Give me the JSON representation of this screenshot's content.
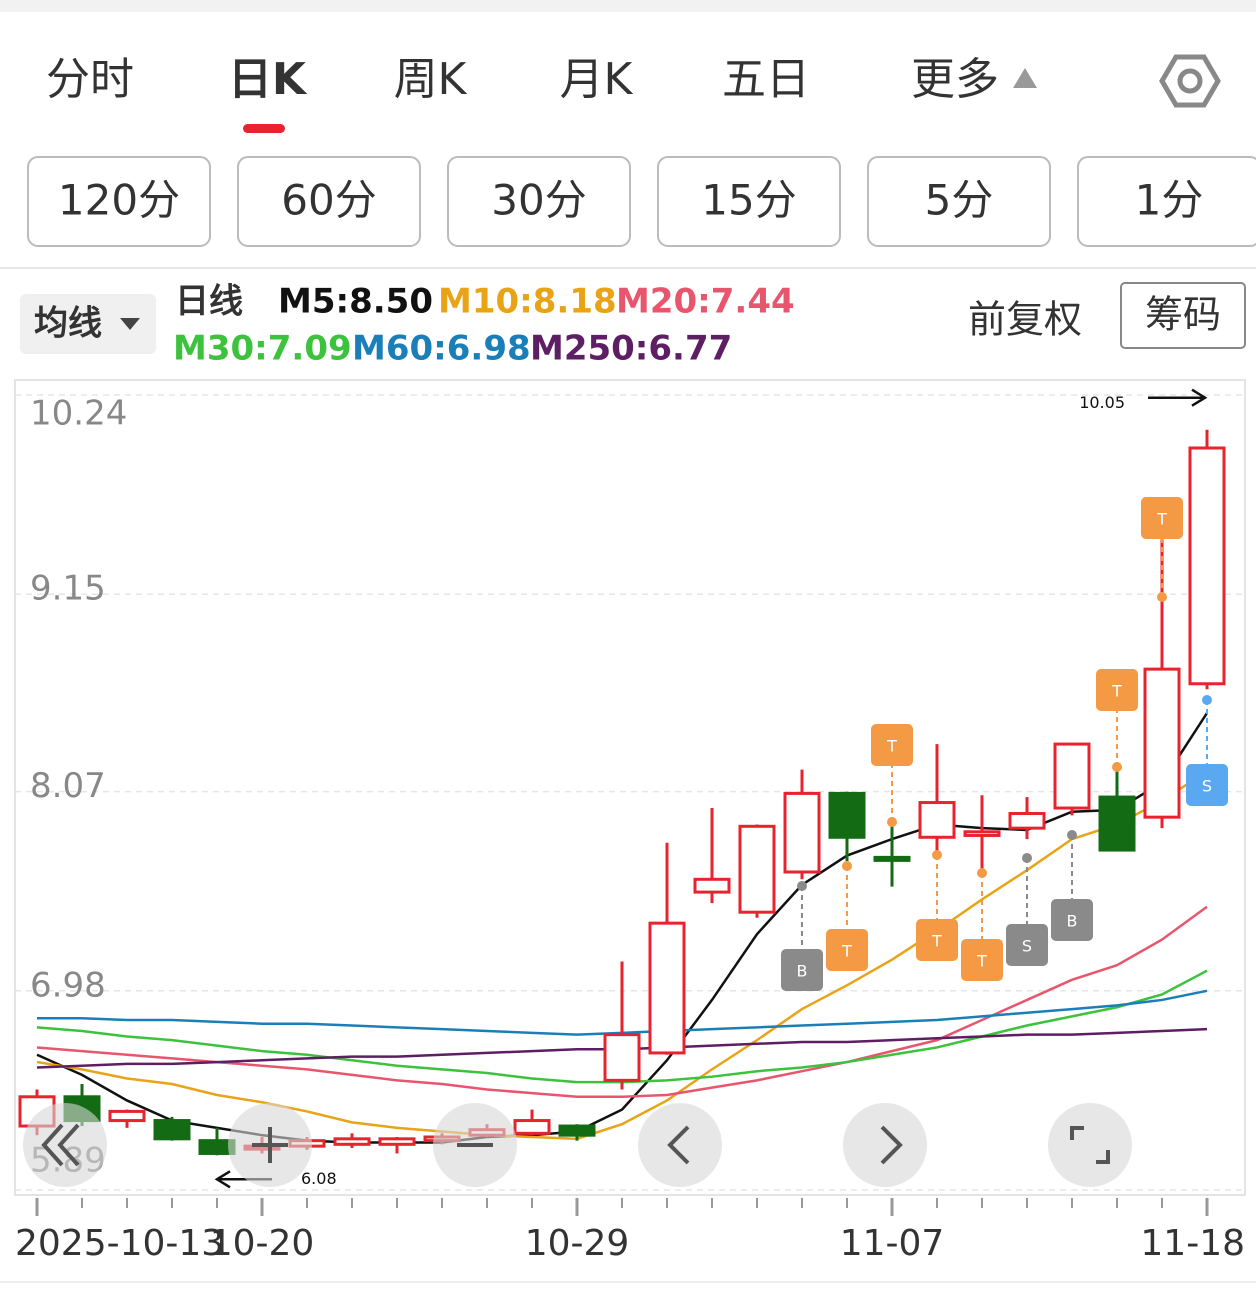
{
  "tabs": [
    "分时",
    "日K",
    "周K",
    "月K",
    "五日",
    "更多"
  ],
  "periods": [
    "120分",
    "60分",
    "30分",
    "15分",
    "5分",
    "1分"
  ],
  "ma_menu": "均线",
  "legend_title": "日线",
  "adjust": "前复权",
  "chips": "筹码",
  "chart_data": {
    "type": "candlestick",
    "categories": [
      "2025-10-13",
      null,
      null,
      null,
      null,
      "10-20",
      null,
      null,
      null,
      null,
      null,
      null,
      "10-29",
      null,
      null,
      null,
      null,
      null,
      null,
      "11-07",
      null,
      null,
      null,
      null,
      null,
      null,
      "11-18"
    ],
    "open": [
      6.24,
      6.4,
      6.27,
      6.27,
      6.16,
      6.12,
      6.13,
      6.14,
      6.14,
      6.16,
      6.19,
      6.2,
      6.24,
      6.49,
      6.64,
      7.52,
      7.41,
      7.63,
      8.06,
      7.71,
      7.82,
      7.83,
      7.87,
      7.98,
      8.04,
      7.93,
      8.66
    ],
    "high": [
      6.44,
      6.47,
      6.33,
      6.29,
      6.23,
      6.18,
      6.18,
      6.2,
      6.18,
      6.2,
      6.25,
      6.33,
      6.25,
      7.14,
      7.79,
      7.98,
      7.89,
      8.19,
      8.07,
      7.92,
      8.33,
      8.05,
      8.04,
      8.33,
      8.2,
      9.45,
      10.05
    ],
    "low": [
      6.19,
      6.24,
      6.23,
      6.16,
      6.08,
      6.09,
      6.11,
      6.12,
      6.09,
      6.14,
      6.18,
      6.19,
      6.16,
      6.44,
      6.63,
      7.46,
      7.38,
      7.59,
      7.69,
      7.55,
      7.72,
      7.63,
      7.81,
      7.94,
      7.75,
      7.87,
      8.63
    ],
    "close": [
      6.4,
      6.27,
      6.32,
      6.17,
      6.09,
      6.13,
      6.16,
      6.17,
      6.17,
      6.18,
      6.22,
      6.27,
      6.19,
      6.74,
      7.35,
      7.59,
      7.88,
      8.06,
      7.82,
      7.7,
      8.01,
      7.85,
      7.95,
      8.33,
      7.75,
      8.74,
      9.95
    ],
    "up_color": "#e8232e",
    "down_color": "#136b13",
    "ylim": [
      5.89,
      10.24
    ],
    "yticks": [
      10.24,
      9.15,
      8.07,
      6.98,
      5.89
    ],
    "grid": true,
    "series": [
      {
        "name": "M5:8.50",
        "color": "#111111",
        "values": [
          6.63,
          6.52,
          6.38,
          6.27,
          6.23,
          6.19,
          6.16,
          6.15,
          6.15,
          6.15,
          6.18,
          6.19,
          6.21,
          6.33,
          6.6,
          6.93,
          7.29,
          7.56,
          7.72,
          7.81,
          7.89,
          7.87,
          7.86,
          7.96,
          7.97,
          8.12,
          8.5
        ]
      },
      {
        "name": "M10:8.18",
        "color": "#e8a317",
        "values": [
          6.59,
          6.55,
          6.5,
          6.47,
          6.41,
          6.37,
          6.32,
          6.26,
          6.23,
          6.21,
          6.19,
          6.18,
          6.17,
          6.25,
          6.38,
          6.55,
          6.71,
          6.88,
          7.01,
          7.15,
          7.31,
          7.48,
          7.64,
          7.81,
          7.89,
          8.02,
          8.18
        ]
      },
      {
        "name": "M20:7.44",
        "color": "#e8566d",
        "values": [
          6.67,
          6.65,
          6.63,
          6.61,
          6.59,
          6.57,
          6.55,
          6.52,
          6.49,
          6.47,
          6.44,
          6.42,
          6.4,
          6.4,
          6.41,
          6.45,
          6.49,
          6.54,
          6.59,
          6.65,
          6.71,
          6.82,
          6.93,
          7.04,
          7.12,
          7.26,
          7.44
        ]
      },
      {
        "name": "M30:7.09",
        "color": "#3cc23c",
        "values": [
          6.78,
          6.76,
          6.73,
          6.71,
          6.68,
          6.65,
          6.63,
          6.6,
          6.57,
          6.55,
          6.53,
          6.5,
          6.48,
          6.48,
          6.49,
          6.51,
          6.54,
          6.56,
          6.59,
          6.63,
          6.67,
          6.73,
          6.79,
          6.84,
          6.89,
          6.96,
          7.09
        ]
      },
      {
        "name": "M60:6.98",
        "color": "#1a7fb8",
        "values": [
          6.83,
          6.83,
          6.82,
          6.82,
          6.81,
          6.8,
          6.8,
          6.79,
          6.78,
          6.77,
          6.76,
          6.75,
          6.74,
          6.75,
          6.76,
          6.77,
          6.78,
          6.79,
          6.8,
          6.81,
          6.82,
          6.84,
          6.86,
          6.88,
          6.9,
          6.93,
          6.98
        ]
      },
      {
        "name": "M250:6.77",
        "color": "#5d1e63",
        "values": [
          6.56,
          6.57,
          6.58,
          6.58,
          6.59,
          6.6,
          6.61,
          6.62,
          6.62,
          6.63,
          6.64,
          6.65,
          6.66,
          6.66,
          6.67,
          6.68,
          6.69,
          6.7,
          6.7,
          6.71,
          6.72,
          6.73,
          6.74,
          6.74,
          6.75,
          6.76,
          6.77
        ]
      }
    ],
    "high_label": 10.05,
    "low_label": 6.08,
    "signals": [
      "B",
      "T",
      "T",
      "T",
      "T",
      "S",
      "B",
      "T",
      "T",
      "S"
    ]
  }
}
